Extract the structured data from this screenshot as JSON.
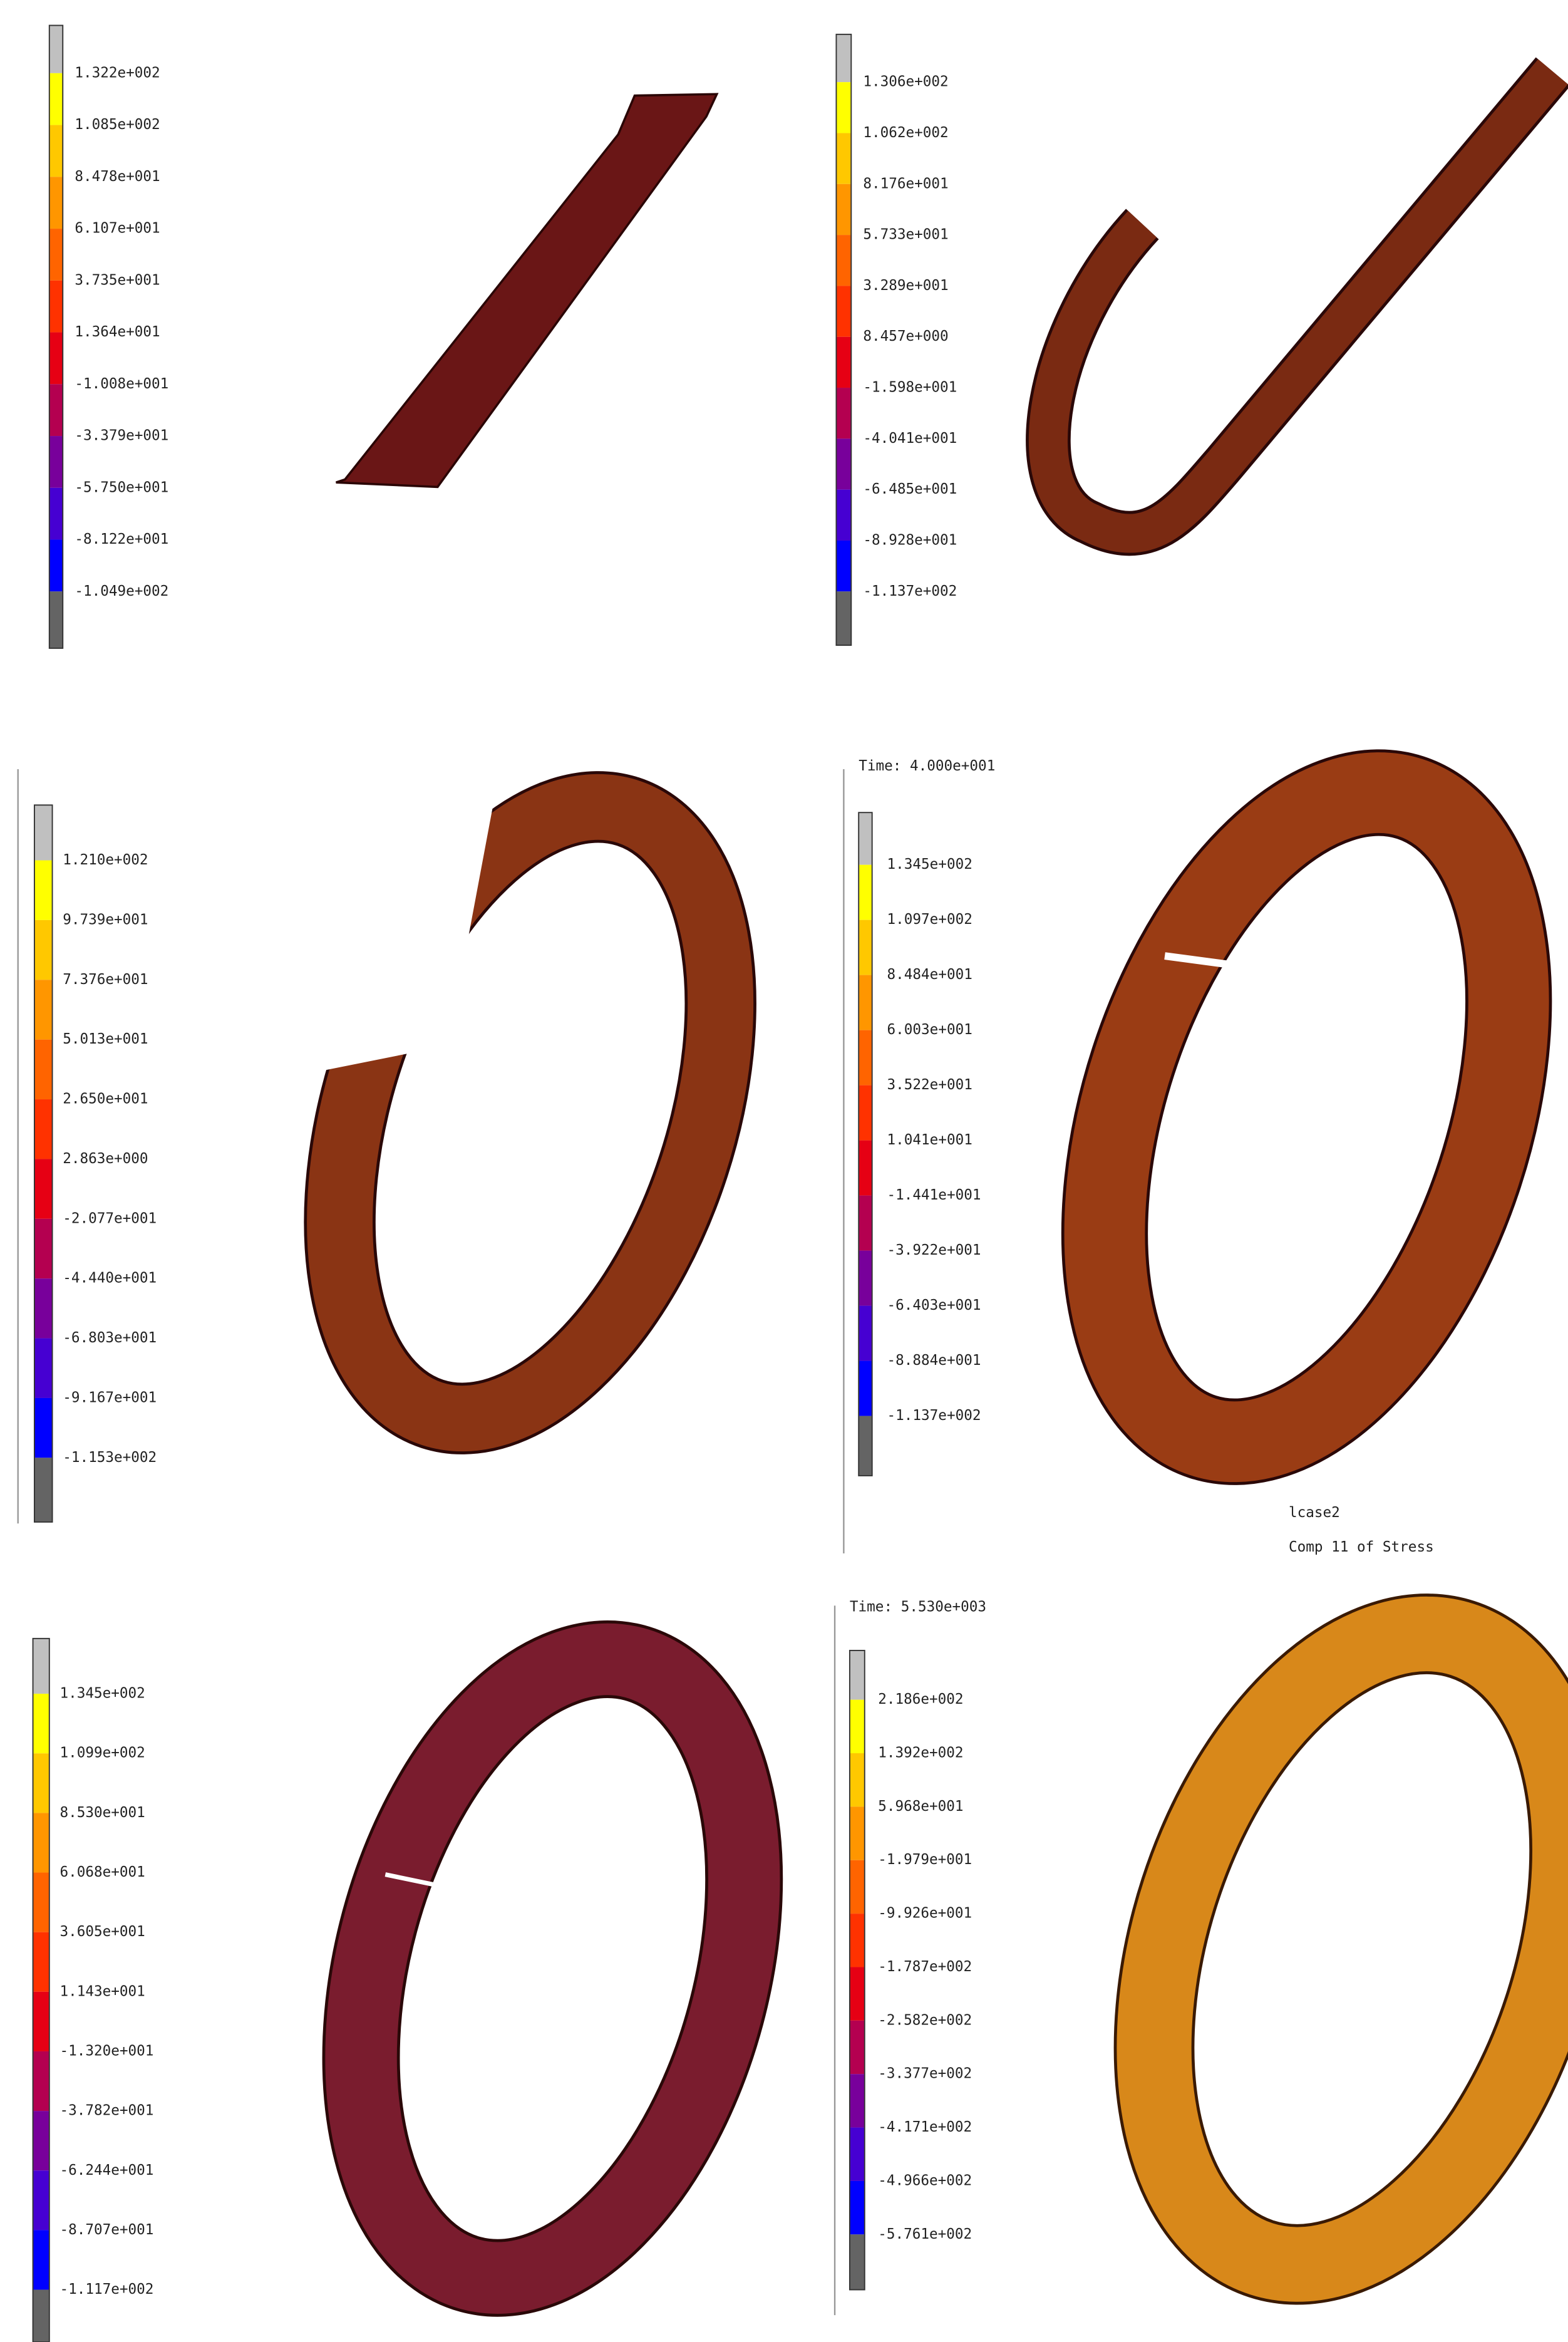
{
  "panels": [
    {
      "legend_labels": [
        "1.322e+002",
        "1.085e+002",
        "8.478e+001",
        "6.107e+001",
        "3.735e+001",
        "1.364e+001",
        "-1.008e+001",
        "-3.379e+001",
        "-5.750e+001",
        "-8.122e+001",
        "-1.049e+002"
      ]
    },
    {
      "legend_labels": [
        "1.306e+002",
        "1.062e+002",
        "8.176e+001",
        "5.733e+001",
        "3.289e+001",
        "8.457e+000",
        "-1.598e+001",
        "-4.041e+001",
        "-6.485e+001",
        "-8.928e+001",
        "-1.137e+002"
      ]
    },
    {
      "legend_labels": [
        "1.210e+002",
        "9.739e+001",
        "7.376e+001",
        "5.013e+001",
        "2.650e+001",
        "2.863e+000",
        "-2.077e+001",
        "-4.440e+001",
        "-6.803e+001",
        "-9.167e+001",
        "-1.153e+002"
      ]
    },
    {
      "header": "Time: 4.000e+001",
      "legend_labels": [
        "1.345e+002",
        "1.097e+002",
        "8.484e+001",
        "6.003e+001",
        "3.522e+001",
        "1.041e+001",
        "-1.441e+001",
        "-3.922e+001",
        "-6.403e+001",
        "-8.884e+001",
        "-1.137e+002"
      ],
      "footer": [
        "lcase2",
        "Comp 11 of Stress"
      ]
    },
    {
      "legend_labels": [
        "1.345e+002",
        "1.099e+002",
        "8.530e+001",
        "6.068e+001",
        "3.605e+001",
        "1.143e+001",
        "-1.320e+001",
        "-3.782e+001",
        "-6.244e+001",
        "-8.707e+001",
        "-1.117e+002"
      ]
    },
    {
      "header": "Time: 5.530e+003",
      "legend_labels": [
        "2.186e+002",
        "1.392e+002",
        "5.968e+001",
        "-1.979e+001",
        "-9.926e+001",
        "-1.787e+002",
        "-2.582e+002",
        "-3.377e+002",
        "-4.171e+002",
        "-4.966e+002",
        "-5.761e+002"
      ]
    }
  ]
}
